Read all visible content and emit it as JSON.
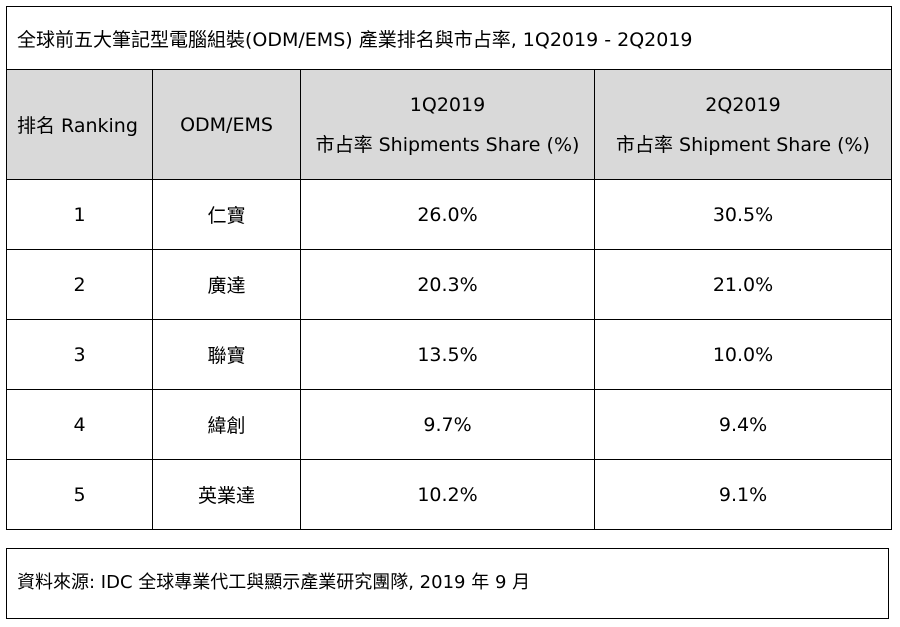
{
  "title": "全球前五大筆記型電腦組裝(ODM/EMS) 產業排名與市占率, 1Q2019 - 2Q2019",
  "headers": {
    "rank": "排名 Ranking",
    "company": "ODM/EMS",
    "q1_period": "1Q2019",
    "q1_label": "市占率 Shipments Share (%)",
    "q2_period": "2Q2019",
    "q2_label": "市占率 Shipment Share (%)"
  },
  "rows": [
    {
      "rank": "1",
      "company": "仁寶",
      "q1": "26.0%",
      "q2": "30.5%"
    },
    {
      "rank": "2",
      "company": "廣達",
      "q1": "20.3%",
      "q2": "21.0%"
    },
    {
      "rank": "3",
      "company": "聯寶",
      "q1": "13.5%",
      "q2": "10.0%"
    },
    {
      "rank": "4",
      "company": "緯創",
      "q1": "9.7%",
      "q2": "9.4%"
    },
    {
      "rank": "5",
      "company": "英業達",
      "q1": "10.2%",
      "q2": "9.1%"
    }
  ],
  "source": "資料來源: IDC 全球專業代工與顯示產業研究團隊, 2019 年 9 月",
  "colors": {
    "header_bg": "#d9d9d9",
    "border": "#000000"
  }
}
